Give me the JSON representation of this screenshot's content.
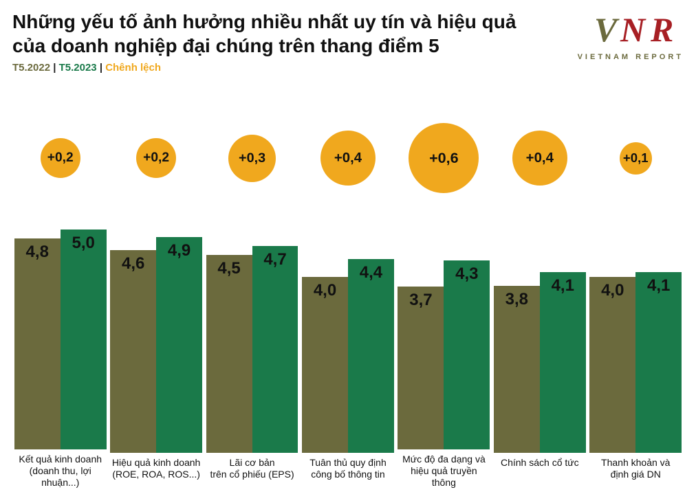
{
  "title": "Những yếu tố ảnh hưởng nhiều nhất uy tín và hiệu quả của doanh nghiệp đại chúng trên thang điểm 5",
  "legend": {
    "l1": "T5.2022",
    "l2": "T5.2023",
    "l3": "Chênh lệch"
  },
  "logo": {
    "main": "VNR",
    "sub": "VIETNAM REPORT",
    "accent_color": "#a71f24",
    "text_color": "#6b6a3d"
  },
  "chart": {
    "type": "bar",
    "ymax": 5.0,
    "ymin": 0,
    "background_color": "#ffffff",
    "bar2022_color": "#6b6a3d",
    "bar2023_color": "#1a7a4a",
    "bubble_color": "#f0a81e",
    "value_fontsize": 24,
    "bubble_fontsize_base": 18,
    "bubble_radius_base": 36,
    "bubble_radius_scale": 110,
    "label_fontsize": 14,
    "bar_area_height": 320,
    "bubble_slot_height": 200,
    "categories": [
      {
        "label_l1": "Kết quả kinh doanh",
        "label_l2": "(doanh thu, lợi nhuận...)",
        "v2022": 4.8,
        "v2023": 5.0,
        "delta": "+0,2",
        "d": 0.2
      },
      {
        "label_l1": "Hiệu quả kinh doanh",
        "label_l2": "(ROE, ROA, ROS...)",
        "v2022": 4.6,
        "v2023": 4.9,
        "delta": "+0,2",
        "d": 0.2
      },
      {
        "label_l1": "Lãi cơ bản",
        "label_l2": "trên cổ phiếu (EPS)",
        "v2022": 4.5,
        "v2023": 4.7,
        "delta": "+0,3",
        "d": 0.3
      },
      {
        "label_l1": "Tuân thủ quy định",
        "label_l2": "công bố thông tin",
        "v2022": 4.0,
        "v2023": 4.4,
        "delta": "+0,4",
        "d": 0.4
      },
      {
        "label_l1": "Mức độ đa dạng và",
        "label_l2": "hiệu quả truyền thông",
        "v2022": 3.7,
        "v2023": 4.3,
        "delta": "+0,6",
        "d": 0.6
      },
      {
        "label_l1": "Chính sách cổ tức",
        "label_l2": "",
        "v2022": 3.8,
        "v2023": 4.1,
        "delta": "+0,4",
        "d": 0.4
      },
      {
        "label_l1": "Thanh khoản và",
        "label_l2": "định giá DN",
        "v2022": 4.0,
        "v2023": 4.1,
        "delta": "+0,1",
        "d": 0.1
      }
    ]
  }
}
